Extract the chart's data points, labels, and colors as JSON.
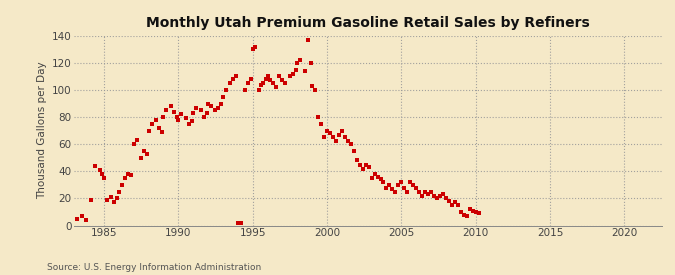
{
  "title": "Monthly Utah Premium Gasoline Retail Sales by Refiners",
  "ylabel": "Thousand Gallons per Day",
  "source": "Source: U.S. Energy Information Administration",
  "background_color": "#f5e9c8",
  "marker_color": "#cc0000",
  "xlim": [
    1983.0,
    2022.5
  ],
  "ylim": [
    0,
    140
  ],
  "xticks": [
    1985,
    1990,
    1995,
    2000,
    2005,
    2010,
    2015,
    2020
  ],
  "yticks": [
    0,
    20,
    40,
    60,
    80,
    100,
    120,
    140
  ],
  "data_points": [
    [
      1983.2,
      5
    ],
    [
      1983.5,
      7
    ],
    [
      1983.8,
      4
    ],
    [
      1984.1,
      19
    ],
    [
      1984.4,
      44
    ],
    [
      1984.7,
      41
    ],
    [
      1984.9,
      38
    ],
    [
      1985.0,
      35
    ],
    [
      1985.2,
      19
    ],
    [
      1985.5,
      21
    ],
    [
      1985.7,
      17
    ],
    [
      1985.9,
      20
    ],
    [
      1986.0,
      25
    ],
    [
      1986.2,
      30
    ],
    [
      1986.4,
      35
    ],
    [
      1986.6,
      38
    ],
    [
      1986.8,
      37
    ],
    [
      1987.0,
      60
    ],
    [
      1987.2,
      63
    ],
    [
      1987.5,
      50
    ],
    [
      1987.7,
      55
    ],
    [
      1987.9,
      53
    ],
    [
      1988.0,
      70
    ],
    [
      1988.2,
      75
    ],
    [
      1988.5,
      78
    ],
    [
      1988.7,
      72
    ],
    [
      1988.9,
      69
    ],
    [
      1989.0,
      80
    ],
    [
      1989.2,
      85
    ],
    [
      1989.5,
      88
    ],
    [
      1989.7,
      84
    ],
    [
      1989.9,
      80
    ],
    [
      1990.0,
      78
    ],
    [
      1990.2,
      82
    ],
    [
      1990.5,
      79
    ],
    [
      1990.7,
      75
    ],
    [
      1990.9,
      77
    ],
    [
      1991.0,
      83
    ],
    [
      1991.2,
      87
    ],
    [
      1991.5,
      85
    ],
    [
      1991.7,
      80
    ],
    [
      1991.9,
      83
    ],
    [
      1992.0,
      90
    ],
    [
      1992.2,
      88
    ],
    [
      1992.5,
      85
    ],
    [
      1992.7,
      87
    ],
    [
      1992.9,
      90
    ],
    [
      1993.0,
      95
    ],
    [
      1993.2,
      100
    ],
    [
      1993.5,
      105
    ],
    [
      1993.7,
      108
    ],
    [
      1993.9,
      110
    ],
    [
      1994.0,
      2
    ],
    [
      1994.2,
      2
    ],
    [
      1994.5,
      100
    ],
    [
      1994.7,
      105
    ],
    [
      1994.9,
      108
    ],
    [
      1995.0,
      130
    ],
    [
      1995.15,
      132
    ],
    [
      1995.4,
      100
    ],
    [
      1995.55,
      104
    ],
    [
      1995.7,
      105
    ],
    [
      1995.9,
      108
    ],
    [
      1996.0,
      110
    ],
    [
      1996.2,
      107
    ],
    [
      1996.4,
      105
    ],
    [
      1996.6,
      102
    ],
    [
      1996.8,
      110
    ],
    [
      1997.0,
      107
    ],
    [
      1997.2,
      105
    ],
    [
      1997.5,
      110
    ],
    [
      1997.7,
      112
    ],
    [
      1997.9,
      115
    ],
    [
      1998.0,
      120
    ],
    [
      1998.2,
      122
    ],
    [
      1998.5,
      114
    ],
    [
      1998.7,
      137
    ],
    [
      1998.9,
      120
    ],
    [
      1999.0,
      103
    ],
    [
      1999.2,
      100
    ],
    [
      1999.4,
      80
    ],
    [
      1999.6,
      75
    ],
    [
      1999.8,
      65
    ],
    [
      2000.0,
      70
    ],
    [
      2000.2,
      68
    ],
    [
      2000.4,
      65
    ],
    [
      2000.6,
      62
    ],
    [
      2000.8,
      67
    ],
    [
      2001.0,
      70
    ],
    [
      2001.2,
      65
    ],
    [
      2001.4,
      62
    ],
    [
      2001.6,
      60
    ],
    [
      2001.8,
      55
    ],
    [
      2002.0,
      48
    ],
    [
      2002.2,
      45
    ],
    [
      2002.4,
      42
    ],
    [
      2002.6,
      45
    ],
    [
      2002.8,
      43
    ],
    [
      2003.0,
      35
    ],
    [
      2003.2,
      38
    ],
    [
      2003.4,
      36
    ],
    [
      2003.6,
      34
    ],
    [
      2003.8,
      32
    ],
    [
      2004.0,
      28
    ],
    [
      2004.2,
      30
    ],
    [
      2004.4,
      27
    ],
    [
      2004.6,
      25
    ],
    [
      2004.8,
      30
    ],
    [
      2005.0,
      32
    ],
    [
      2005.2,
      28
    ],
    [
      2005.4,
      25
    ],
    [
      2005.6,
      32
    ],
    [
      2005.8,
      30
    ],
    [
      2006.0,
      28
    ],
    [
      2006.2,
      25
    ],
    [
      2006.4,
      22
    ],
    [
      2006.6,
      25
    ],
    [
      2006.8,
      23
    ],
    [
      2007.0,
      25
    ],
    [
      2007.2,
      22
    ],
    [
      2007.4,
      20
    ],
    [
      2007.6,
      22
    ],
    [
      2007.8,
      23
    ],
    [
      2008.0,
      20
    ],
    [
      2008.2,
      18
    ],
    [
      2008.4,
      15
    ],
    [
      2008.6,
      17
    ],
    [
      2008.8,
      15
    ],
    [
      2009.0,
      10
    ],
    [
      2009.2,
      8
    ],
    [
      2009.4,
      7
    ],
    [
      2009.6,
      12
    ],
    [
      2009.8,
      11
    ],
    [
      2010.0,
      10
    ],
    [
      2010.2,
      9
    ]
  ]
}
